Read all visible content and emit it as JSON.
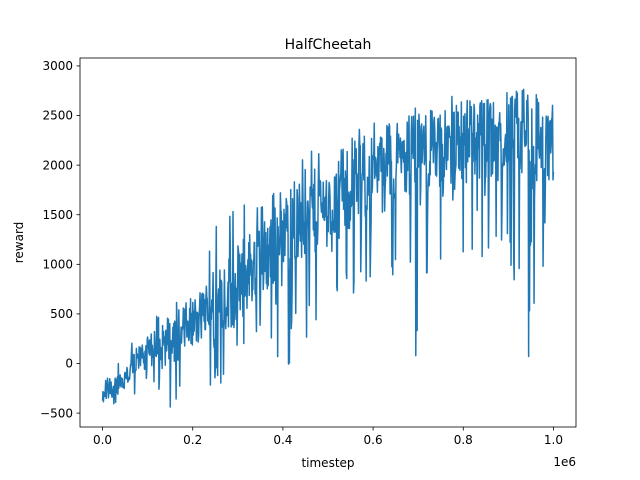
{
  "chart_data": {
    "type": "line",
    "title": "HalfCheetah",
    "xlabel": "timestep",
    "ylabel": "reward",
    "x_offset_label": "1e6",
    "xlim": [
      -0.05,
      1.05
    ],
    "ylim": [
      -640,
      3080
    ],
    "xticks": [
      0.0,
      0.2,
      0.4,
      0.6,
      0.8,
      1.0
    ],
    "xtick_labels": [
      "0.0",
      "0.2",
      "0.4",
      "0.6",
      "0.8",
      "1.0"
    ],
    "yticks": [
      -500,
      0,
      500,
      1000,
      1500,
      2000,
      2500,
      3000
    ],
    "ytick_labels": [
      "−500",
      "0",
      "500",
      "1000",
      "1500",
      "2000",
      "2500",
      "3000"
    ],
    "grid": false,
    "legend": "none",
    "series": [
      {
        "color": "#1f77b4",
        "x": [
          0.0,
          0.025,
          0.05,
          0.075,
          0.1,
          0.125,
          0.15,
          0.175,
          0.2,
          0.225,
          0.25,
          0.275,
          0.3,
          0.325,
          0.35,
          0.375,
          0.4,
          0.425,
          0.45,
          0.475,
          0.5,
          0.525,
          0.55,
          0.575,
          0.6,
          0.625,
          0.65,
          0.675,
          0.7,
          0.725,
          0.75,
          0.775,
          0.8,
          0.825,
          0.85,
          0.875,
          0.9,
          0.925,
          0.95,
          0.975,
          1.0
        ],
        "y": [
          -350,
          -250,
          -150,
          0,
          100,
          150,
          250,
          300,
          400,
          500,
          600,
          700,
          800,
          950,
          1050,
          1150,
          1250,
          1350,
          1450,
          1550,
          1600,
          1700,
          1750,
          1850,
          1900,
          1950,
          2000,
          2050,
          2100,
          2150,
          2150,
          2200,
          2200,
          2250,
          2250,
          2250,
          2300,
          2300,
          2300,
          2250,
          2250
        ],
        "min_envelope": [
          -480,
          -450,
          -420,
          -350,
          -300,
          -420,
          -480,
          -460,
          -420,
          -350,
          -250,
          -200,
          -150,
          -100,
          0,
          0,
          -100,
          50,
          200,
          300,
          350,
          400,
          450,
          600,
          550,
          500,
          700,
          750,
          -150,
          600,
          800,
          650,
          700,
          550,
          500,
          700,
          900,
          650,
          -100,
          900,
          850
        ],
        "max_envelope": [
          -200,
          50,
          150,
          350,
          500,
          550,
          700,
          750,
          850,
          950,
          1600,
          1500,
          1700,
          1800,
          1650,
          1900,
          2000,
          2050,
          2200,
          2250,
          2250,
          2500,
          2350,
          2450,
          2550,
          2450,
          2450,
          2500,
          2600,
          2650,
          2600,
          2700,
          2750,
          2650,
          2650,
          2700,
          2750,
          2800,
          2880,
          2800,
          2700
        ]
      }
    ]
  }
}
